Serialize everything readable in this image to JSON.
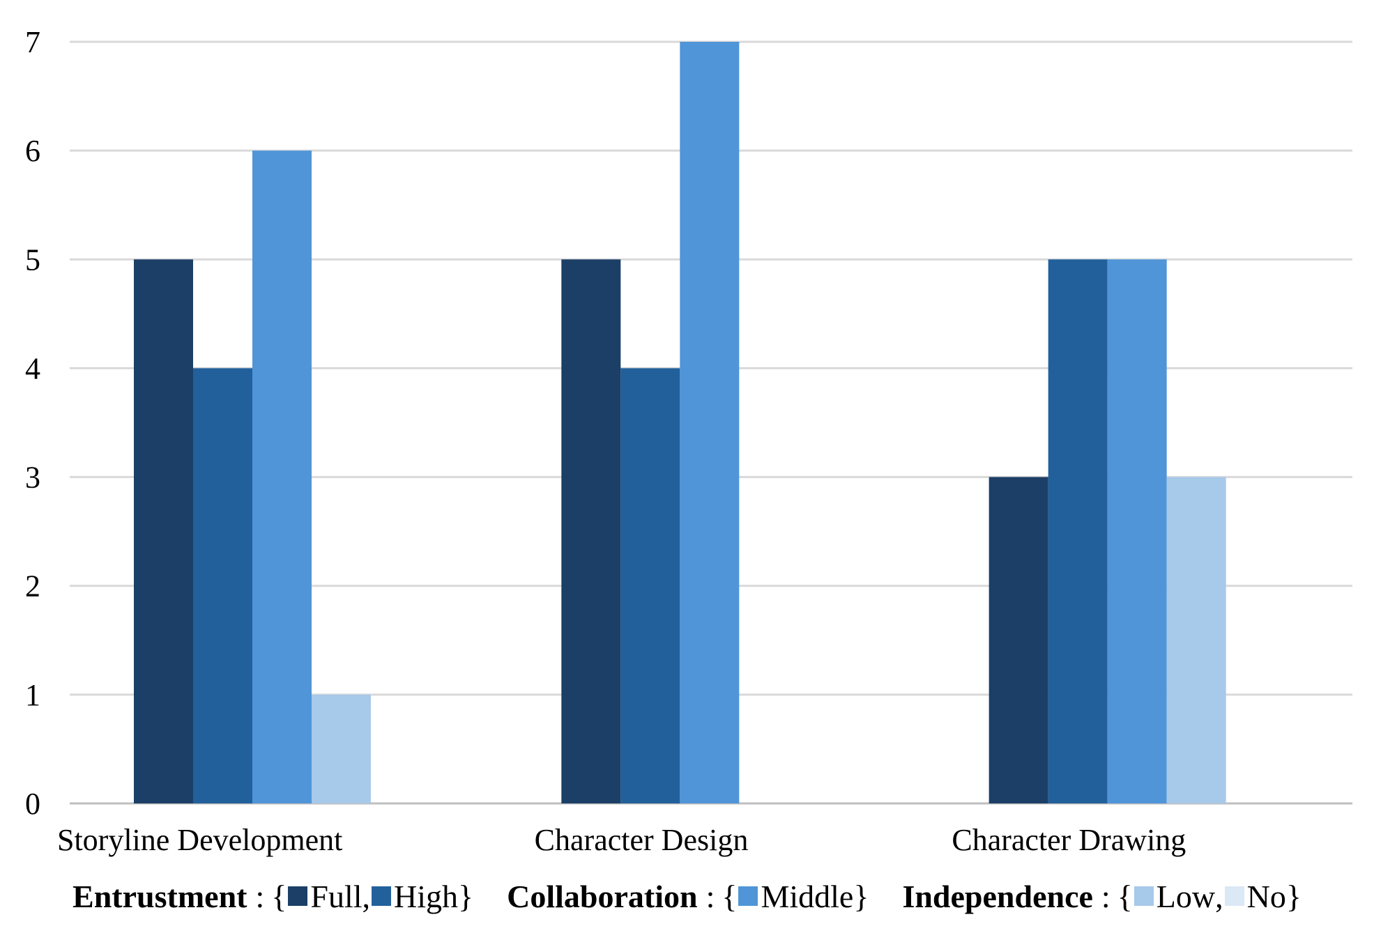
{
  "chart_data": {
    "type": "bar",
    "title": "",
    "xlabel": "",
    "ylabel": "",
    "ylim": [
      0,
      7
    ],
    "yticks": [
      0,
      1,
      2,
      3,
      4,
      5,
      6,
      7
    ],
    "grid": true,
    "legend_position": "bottom",
    "categories": [
      "Storyline Development",
      "Character Design",
      "Character Drawing"
    ],
    "series": [
      {
        "name": "Full",
        "color": "#1b3f66",
        "values": [
          5,
          5,
          3
        ]
      },
      {
        "name": "High",
        "color": "#22609c",
        "values": [
          4,
          4,
          5
        ]
      },
      {
        "name": "Middle",
        "color": "#5095d8",
        "values": [
          6,
          7,
          5
        ]
      },
      {
        "name": "Low",
        "color": "#a7c9ea",
        "values": [
          1,
          0,
          3
        ]
      },
      {
        "name": "No",
        "color": "#dbe8f5",
        "values": [
          0,
          0,
          0
        ]
      }
    ]
  },
  "legend": {
    "groups": [
      {
        "label": "Entrustment",
        "sep": ":",
        "open": "{",
        "close": "}",
        "items": [
          {
            "name": "Full",
            "suffix": ","
          },
          {
            "name": "High",
            "suffix": ""
          }
        ]
      },
      {
        "label": "Collaboration",
        "sep": ":",
        "open": "{",
        "close": "}",
        "items": [
          {
            "name": "Middle",
            "suffix": ""
          }
        ]
      },
      {
        "label": "Independence",
        "sep": ":",
        "open": "{",
        "close": "}",
        "items": [
          {
            "name": "Low",
            "suffix": ","
          },
          {
            "name": "No",
            "suffix": ""
          }
        ]
      }
    ]
  },
  "colors": {
    "gridline": "#d9d9d9",
    "baseline": "#bfbfbf"
  }
}
